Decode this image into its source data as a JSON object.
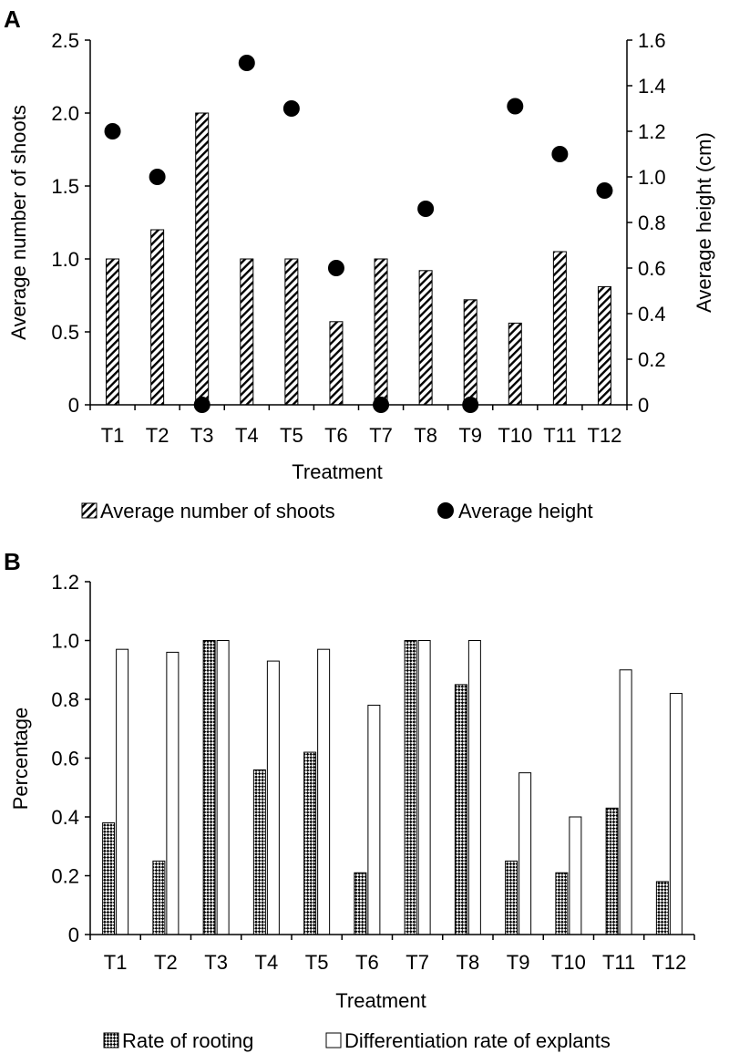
{
  "chart_data": [
    {
      "panel_label": "A",
      "type": "bar",
      "categories": [
        "T1",
        "T2",
        "T3",
        "T4",
        "T5",
        "T6",
        "T7",
        "T8",
        "T9",
        "T10",
        "T11",
        "T12"
      ],
      "xlabel": "Treatment",
      "ylabel": "Average number of shoots",
      "y2label": "Average height (cm)",
      "ylim": [
        0,
        2.5
      ],
      "yticks": [
        "0",
        "0.5",
        "1.0",
        "1.5",
        "2.0",
        "2.5"
      ],
      "y2lim": [
        0,
        1.6
      ],
      "y2ticks": [
        "0",
        "0.2",
        "0.4",
        "0.6",
        "0.8",
        "1.0",
        "1.2",
        "1.4",
        "1.6"
      ],
      "grid": false,
      "legend_position": "bottom",
      "series": [
        {
          "name": "Average number of shoots",
          "kind": "bar",
          "pattern": "hatch-diagonal",
          "axis": "left",
          "values": [
            1.0,
            1.2,
            2.0,
            1.0,
            1.0,
            0.57,
            1.0,
            0.92,
            0.72,
            0.56,
            1.05,
            0.81
          ]
        },
        {
          "name": "Average height",
          "kind": "scatter",
          "marker": "filled-circle",
          "axis": "right",
          "values": [
            1.2,
            1.0,
            0,
            1.5,
            1.3,
            0.6,
            0,
            0.86,
            0,
            1.31,
            1.1,
            0.94
          ]
        }
      ]
    },
    {
      "panel_label": "B",
      "type": "bar",
      "categories": [
        "T1",
        "T2",
        "T3",
        "T4",
        "T5",
        "T6",
        "T7",
        "T8",
        "T9",
        "T10",
        "T11",
        "T12"
      ],
      "xlabel": "Treatment",
      "ylabel": "Percentage",
      "ylim": [
        0,
        1.2
      ],
      "yticks": [
        "0",
        "0.2",
        "0.4",
        "0.6",
        "0.8",
        "1.0",
        "1.2"
      ],
      "grid": false,
      "legend_position": "bottom",
      "series": [
        {
          "name": "Rate of rooting",
          "kind": "bar",
          "pattern": "hatch-checker",
          "values": [
            0.38,
            0.25,
            1.0,
            0.56,
            0.62,
            0.21,
            1.0,
            0.85,
            0.25,
            0.21,
            0.43,
            0.18
          ]
        },
        {
          "name": "Differentiation rate of explants",
          "kind": "bar",
          "pattern": "white",
          "values": [
            0.97,
            0.96,
            1.0,
            0.93,
            0.97,
            0.78,
            1.0,
            1.0,
            0.55,
            0.4,
            0.9,
            0.82
          ]
        }
      ]
    }
  ]
}
